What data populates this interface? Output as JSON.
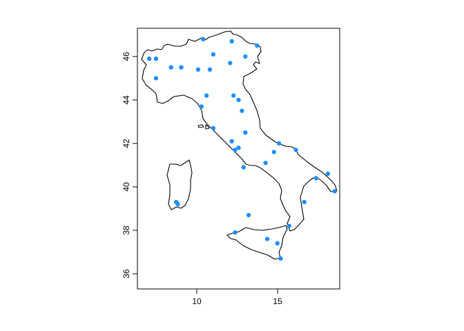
{
  "chart_data": {
    "type": "scatter",
    "title": "",
    "xlabel": "",
    "ylabel": "",
    "xlim": [
      6.6,
      18.6
    ],
    "ylim": [
      35.3,
      47.3
    ],
    "x_ticks": [
      10,
      15
    ],
    "x_tick_labels": [
      "10",
      "15"
    ],
    "y_ticks": [
      36,
      38,
      40,
      42,
      44,
      46
    ],
    "y_tick_labels": [
      "36",
      "38",
      "40",
      "42",
      "44",
      "46"
    ],
    "grid": false,
    "legend": "none",
    "point_color": "#1E90FF",
    "outline_color": "#000000",
    "points": [
      {
        "x": 7.3,
        "y": 45.9
      },
      {
        "x": 7.7,
        "y": 45.9
      },
      {
        "x": 7.7,
        "y": 45.0
      },
      {
        "x": 8.6,
        "y": 45.5
      },
      {
        "x": 9.2,
        "y": 45.5
      },
      {
        "x": 10.2,
        "y": 45.4
      },
      {
        "x": 10.5,
        "y": 46.8
      },
      {
        "x": 10.9,
        "y": 45.4
      },
      {
        "x": 11.1,
        "y": 46.1
      },
      {
        "x": 12.1,
        "y": 45.7
      },
      {
        "x": 12.2,
        "y": 46.7
      },
      {
        "x": 13.0,
        "y": 46.0
      },
      {
        "x": 13.7,
        "y": 46.5
      },
      {
        "x": 10.7,
        "y": 44.2
      },
      {
        "x": 10.4,
        "y": 43.7
      },
      {
        "x": 12.3,
        "y": 44.2
      },
      {
        "x": 12.6,
        "y": 44.0
      },
      {
        "x": 12.8,
        "y": 43.5
      },
      {
        "x": 11.1,
        "y": 42.7
      },
      {
        "x": 13.0,
        "y": 42.5
      },
      {
        "x": 12.2,
        "y": 42.1
      },
      {
        "x": 12.4,
        "y": 41.7
      },
      {
        "x": 12.6,
        "y": 41.8
      },
      {
        "x": 15.0,
        "y": 42.0
      },
      {
        "x": 16.0,
        "y": 41.7
      },
      {
        "x": 14.7,
        "y": 41.6
      },
      {
        "x": 14.2,
        "y": 41.1
      },
      {
        "x": 12.9,
        "y": 40.9
      },
      {
        "x": 17.9,
        "y": 40.6
      },
      {
        "x": 17.2,
        "y": 40.4
      },
      {
        "x": 18.3,
        "y": 39.8
      },
      {
        "x": 16.5,
        "y": 39.3
      },
      {
        "x": 8.9,
        "y": 39.3
      },
      {
        "x": 9.0,
        "y": 39.2
      },
      {
        "x": 13.2,
        "y": 38.7
      },
      {
        "x": 15.6,
        "y": 38.2
      },
      {
        "x": 12.4,
        "y": 37.9
      },
      {
        "x": 14.3,
        "y": 37.6
      },
      {
        "x": 14.9,
        "y": 37.4
      },
      {
        "x": 15.1,
        "y": 36.7
      }
    ]
  }
}
